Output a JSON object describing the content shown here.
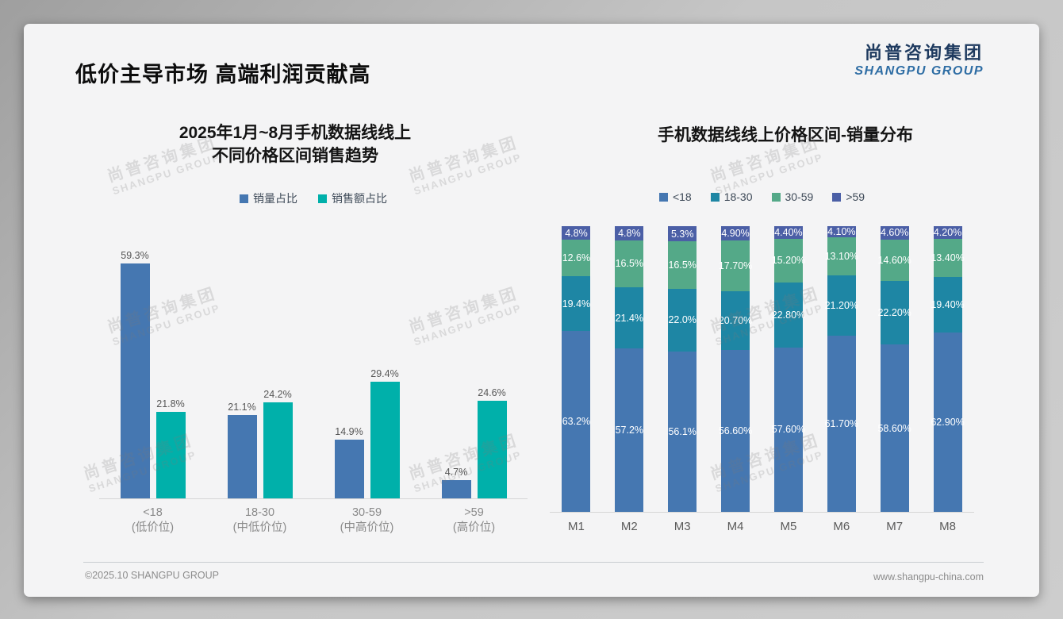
{
  "slide": {
    "title": "低价主导市场 高端利润贡献高",
    "logo": {
      "cn": "尚普咨询集团",
      "en": "SHANGPU GROUP"
    },
    "watermark": {
      "cn": "尚普咨询集团",
      "en": "SHANGPU GROUP"
    },
    "footer": {
      "copyright": "©2025.10 SHANGPU GROUP",
      "website": "www.shangpu-china.com"
    }
  },
  "colors": {
    "steel_blue": "#4577B1",
    "bright_teal": "#00B0AA",
    "stack_teal": "#1E86A4",
    "stack_green": "#54A988",
    "stack_slate": "#4B5FA6",
    "logo_cn": "#1E3A5F",
    "logo_en": "#2E6DA4"
  },
  "chart_data": [
    {
      "type": "bar",
      "title": "2025年1月~8月手机数据线线上 不同价格区间销售趋势",
      "title_lines": [
        "2025年1月~8月手机数据线线上",
        "不同价格区间销售趋势"
      ],
      "categories": [
        [
          "<18",
          "(低价位)"
        ],
        [
          "18-30",
          "(中低价位)"
        ],
        [
          "30-59",
          "(中高价位)"
        ],
        [
          ">59",
          "(高价位)"
        ]
      ],
      "series": [
        {
          "name": "销量占比",
          "color": "#4577B1",
          "values": [
            59.3,
            21.1,
            14.9,
            4.7
          ],
          "labels": [
            "59.3%",
            "21.1%",
            "14.9%",
            "4.7%"
          ]
        },
        {
          "name": "销售额占比",
          "color": "#00B0AA",
          "values": [
            21.8,
            24.2,
            29.4,
            24.6
          ],
          "labels": [
            "21.8%",
            "24.2%",
            "29.4%",
            "24.6%"
          ]
        }
      ],
      "unit": "%",
      "ylim": [
        0,
        60
      ],
      "grid": false,
      "legend_position": "top"
    },
    {
      "type": "bar",
      "stacked": true,
      "title": "手机数据线线上价格区间-销量分布",
      "categories": [
        "M1",
        "M2",
        "M3",
        "M4",
        "M5",
        "M6",
        "M7",
        "M8"
      ],
      "series": [
        {
          "name": "<18",
          "color": "#4577B1",
          "values": [
            63.2,
            57.2,
            56.1,
            56.6,
            57.6,
            61.7,
            58.6,
            62.9
          ],
          "labels": [
            "63.2%",
            "57.2%",
            "56.1%",
            "56.60%",
            "57.60%",
            "61.70%",
            "58.60%",
            "62.90%"
          ]
        },
        {
          "name": "18-30",
          "color": "#1E86A4",
          "values": [
            19.4,
            21.4,
            22.0,
            20.7,
            22.8,
            21.2,
            22.2,
            19.4
          ],
          "labels": [
            "19.4%",
            "21.4%",
            "22.0%",
            "20.70%",
            "22.80%",
            "21.20%",
            "22.20%",
            "19.40%"
          ]
        },
        {
          "name": "30-59",
          "color": "#54A988",
          "values": [
            12.6,
            16.5,
            16.5,
            17.7,
            15.2,
            13.1,
            14.6,
            13.4
          ],
          "labels": [
            "12.6%",
            "16.5%",
            "16.5%",
            "17.70%",
            "15.20%",
            "13.10%",
            "14.60%",
            "13.40%"
          ]
        },
        {
          "name": ">59",
          "color": "#4B5FA6",
          "values": [
            4.8,
            4.8,
            5.3,
            4.9,
            4.4,
            4.1,
            4.6,
            4.2
          ],
          "labels": [
            "4.8%",
            "4.8%",
            "5.3%",
            "4.90%",
            "4.40%",
            "4.10%",
            "4.60%",
            "4.20%"
          ]
        }
      ],
      "unit": "%",
      "ylim": [
        0,
        100
      ],
      "grid": false,
      "legend_position": "top"
    }
  ]
}
